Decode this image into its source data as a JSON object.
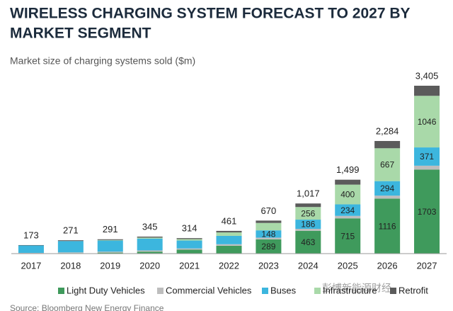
{
  "chart_data": {
    "type": "stacked_bar",
    "title_lines": [
      "WIRELESS CHARGING SYSTEM FORECAST TO 2027 BY",
      "MARKET SEGMENT"
    ],
    "subtitle": "Market size of charging systems sold ($m)",
    "source": "Source: Bloomberg New Energy Finance",
    "watermark": "彭博新能源财经",
    "categories": [
      "2017",
      "2018",
      "2019",
      "2020",
      "2021",
      "2022",
      "2023",
      "2024",
      "2025",
      "2026",
      "2027"
    ],
    "ylim": [
      0,
      3405
    ],
    "series": [
      {
        "name": "Light Duty Vehicles",
        "color": "#3f9a5c",
        "label_from_index": 6,
        "values": [
          5,
          10,
          20,
          40,
          80,
          160,
          289,
          463,
          715,
          1116,
          1703
        ]
      },
      {
        "name": "Commercial Vehicles",
        "color": "#bdbdbd",
        "values": [
          10,
          15,
          20,
          25,
          25,
          30,
          35,
          40,
          50,
          60,
          80
        ]
      },
      {
        "name": "Buses",
        "color": "#3cb6de",
        "label_from_index": 6,
        "values": [
          150,
          230,
          225,
          240,
          160,
          170,
          148,
          186,
          234,
          294,
          371
        ]
      },
      {
        "name": "Infrastructure",
        "color": "#a9d9a9",
        "label_from_index": 7,
        "values": [
          0,
          0,
          10,
          20,
          30,
          70,
          150,
          256,
          400,
          667,
          1046
        ]
      },
      {
        "name": "Retrofit",
        "color": "#5b5b5b",
        "values": [
          8,
          16,
          16,
          20,
          19,
          31,
          48,
          72,
          100,
          147,
          205
        ]
      }
    ],
    "totals": {
      "values": [
        173,
        271,
        291,
        345,
        314,
        461,
        670,
        1017,
        1499,
        2284,
        3405
      ],
      "value_labels": [
        "173",
        "271",
        "291",
        "345",
        "314",
        "461",
        "670",
        "1,017",
        "1,499",
        "2,284",
        "3,405"
      ]
    }
  }
}
